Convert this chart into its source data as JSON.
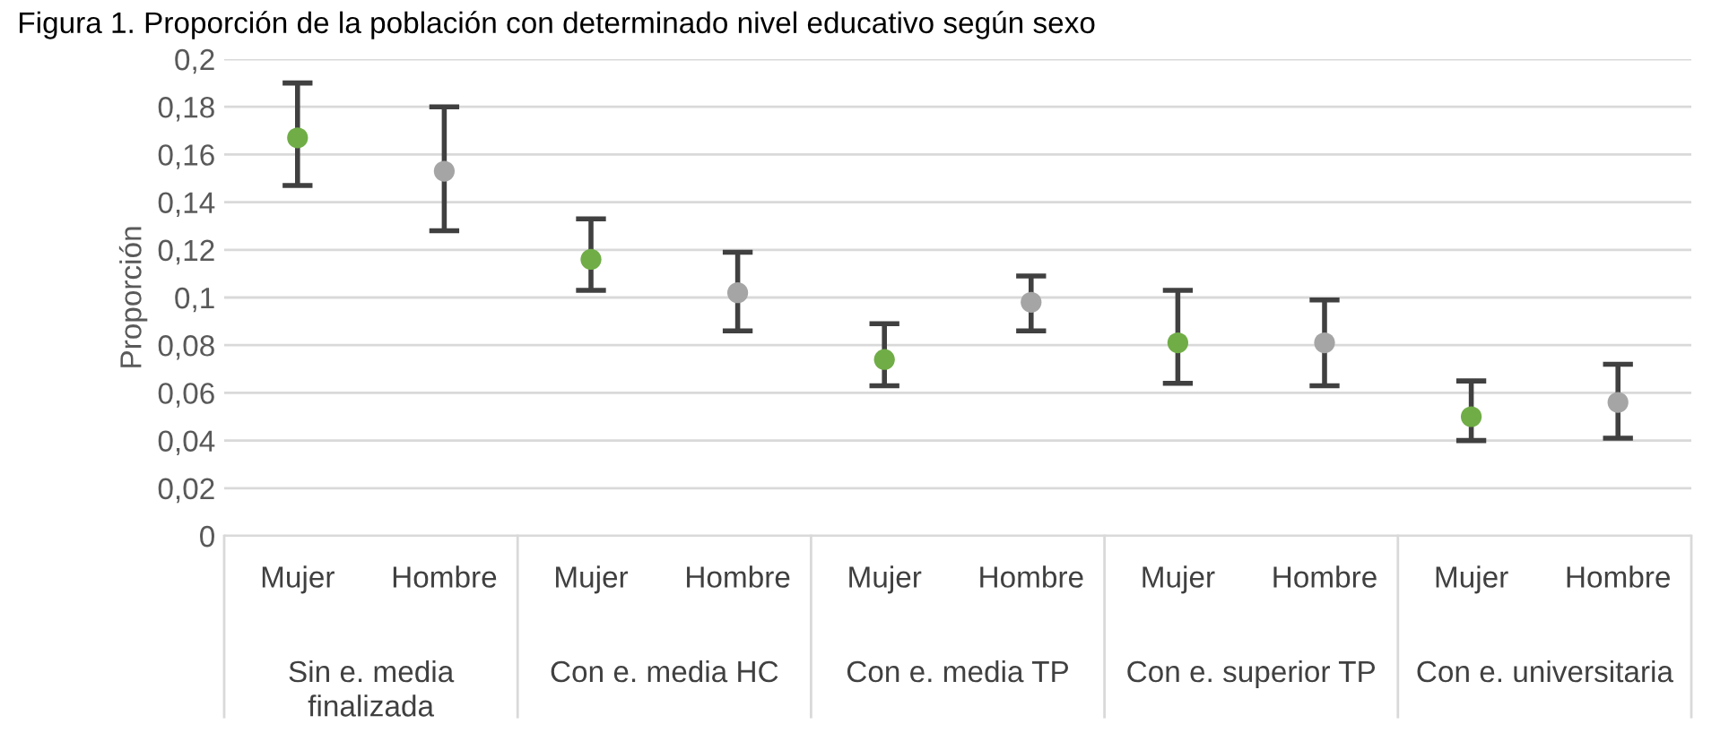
{
  "chart_data": {
    "type": "scatter",
    "title": "Figura 1. Proporción de la población con determinado nivel educativo según sexo",
    "ylabel": "Proporción",
    "categories": [
      "Mujer",
      "Hombre",
      "Mujer",
      "Hombre",
      "Mujer",
      "Hombre",
      "Mujer",
      "Hombre",
      "Mujer",
      "Hombre"
    ],
    "values": [
      0.167,
      0.153,
      0.116,
      0.102,
      0.074,
      0.098,
      0.081,
      0.081,
      0.05,
      0.056
    ],
    "colors": [
      "#70ad47",
      "#a5a5a5",
      "#70ad47",
      "#a5a5a5",
      "#70ad47",
      "#a5a5a5",
      "#70ad47",
      "#a5a5a5",
      "#70ad47",
      "#a5a5a5"
    ],
    "errors": [
      [
        0.147,
        0.19
      ],
      [
        0.128,
        0.18
      ],
      [
        0.103,
        0.133
      ],
      [
        0.086,
        0.119
      ],
      [
        0.063,
        0.089
      ],
      [
        0.086,
        0.109
      ],
      [
        0.064,
        0.103
      ],
      [
        0.063,
        0.099
      ],
      [
        0.04,
        0.065
      ],
      [
        0.041,
        0.072
      ]
    ],
    "annotations": [
      "Sin e. media\nfinalizada",
      "Con e. media HC",
      "Con e. media TP",
      "Con e. superior TP",
      "Con e. universitaria"
    ],
    "ylim": [
      0,
      0.2
    ],
    "yticks": [
      0,
      {
        "value": 0.02,
        "label": "0,02"
      },
      {
        "value": 0.04,
        "label": "0,04"
      },
      {
        "value": 0.06,
        "label": "0,06"
      },
      {
        "value": 0.08,
        "label": "0,08"
      },
      {
        "value": 0.1,
        "label": "0,1"
      },
      {
        "value": 0.12,
        "label": "0,12"
      },
      {
        "value": 0.14,
        "label": "0,14"
      },
      {
        "value": 0.16,
        "label": "0,16"
      },
      {
        "value": 0.18,
        "label": "0,18"
      },
      {
        "value": 0.2,
        "label": "0,2"
      }
    ],
    "grid": "y",
    "marker": "circle"
  }
}
